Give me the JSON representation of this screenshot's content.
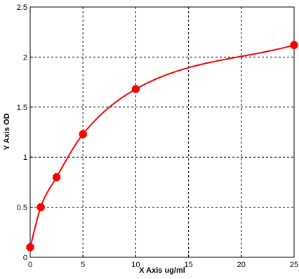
{
  "chart_data": {
    "type": "scatter",
    "title": "",
    "xlabel": "X Axis ug/ml",
    "ylabel": "Y Axis OD",
    "xlim": [
      0,
      25
    ],
    "ylim": [
      0,
      2.5
    ],
    "x_ticks": [
      "0",
      "5",
      "10",
      "15",
      "20",
      "25"
    ],
    "y_ticks": [
      "0",
      "0.5",
      "1",
      "1.5",
      "2",
      "2.5"
    ],
    "grid": true,
    "grid_style": "dashed",
    "legend": "none",
    "series": [
      {
        "points": [
          {
            "x": 0,
            "y": 0.1
          },
          {
            "x": 1,
            "y": 0.5
          },
          {
            "x": 2.5,
            "y": 0.8
          },
          {
            "x": 5,
            "y": 1.23
          },
          {
            "x": 10,
            "y": 1.68
          },
          {
            "x": 25,
            "y": 2.12
          }
        ],
        "fit": "smooth curve",
        "color": "#ff0000"
      }
    ]
  }
}
